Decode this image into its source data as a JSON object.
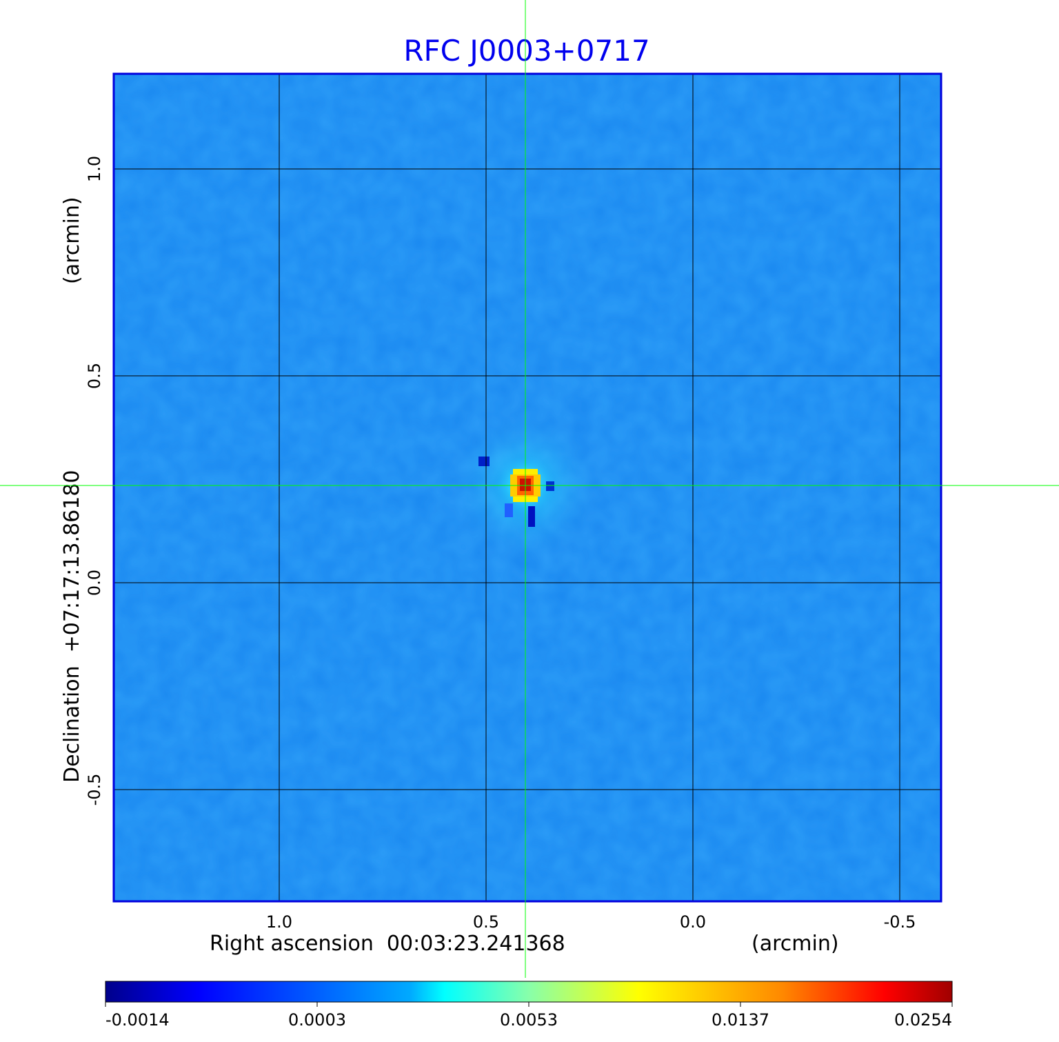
{
  "chart_data": {
    "type": "heatmap",
    "title": "RFC J0003+0717",
    "xlabel": "Right ascension  00:03:23.241368",
    "xunit": "(arcmin)",
    "ylabel": "Declination  +07:17:13.86180",
    "yunit": "(arcmin)",
    "xlim": [
      1.4,
      -0.6
    ],
    "ylim": [
      -0.77,
      1.23
    ],
    "xticks": [
      1.0,
      0.5,
      0.0,
      -0.5
    ],
    "xtick_labels": [
      "1.0",
      "0.5",
      "0.0",
      "-0.5"
    ],
    "yticks": [
      1.0,
      0.5,
      0.0,
      -0.5
    ],
    "ytick_labels": [
      "1.0",
      "0.5",
      "0.0",
      "-0.5"
    ],
    "grid": true,
    "source_peak": {
      "x": 0.405,
      "y": 0.235,
      "value": 0.0254
    },
    "crosshair": {
      "x": 0.405,
      "y": 0.235
    },
    "colorbar": {
      "tick_labels": [
        "-0.0014",
        "0.0003",
        "0.0053",
        "0.0137",
        "0.0254"
      ],
      "values": [
        -0.0014,
        0.0003,
        0.0053,
        0.0137,
        0.0254
      ],
      "colormap": "jet"
    }
  },
  "colors": {
    "title": "#0000ee",
    "frame": "#0000dd",
    "grid": "#000000",
    "crosshair": "#00ff00",
    "background_field": "#1a88f0"
  }
}
